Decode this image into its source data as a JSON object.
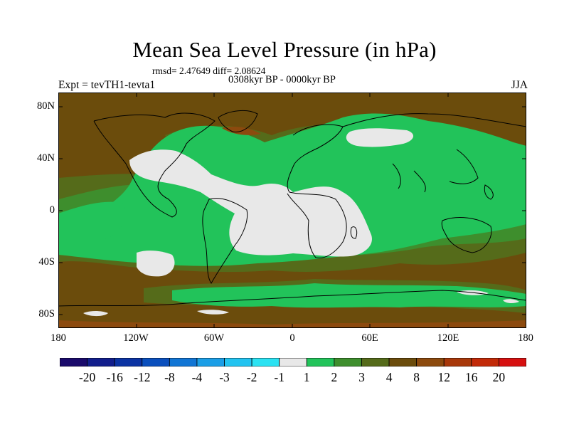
{
  "title": "Mean Sea Level Pressure (in hPa)",
  "stats_line": "rmsd= 2.47649  diff= 2.08624",
  "period_line": "0308kyr BP - 0000kyr BP",
  "experiment": "Expt = tevTH1-tevta1",
  "season": "JJA",
  "lat_labels": [
    "80N",
    "40N",
    "0",
    "40S",
    "80S"
  ],
  "lon_labels": [
    "180",
    "120W",
    "60W",
    "0",
    "60E",
    "120E",
    "180"
  ],
  "colorbar": {
    "labels": [
      "-20",
      "-16",
      "-12",
      "-8",
      "-4",
      "-3",
      "-2",
      "-1",
      "1",
      "2",
      "3",
      "4",
      "8",
      "12",
      "16",
      "20"
    ],
    "colors": [
      "#1a0a6b",
      "#121e8c",
      "#0b33a3",
      "#0a4fbd",
      "#1175d4",
      "#1b9ee6",
      "#22c3f0",
      "#2be2f2",
      "#e8e8e8",
      "#22c35a",
      "#3e8e2d",
      "#556b1a",
      "#6b4c0c",
      "#8c4a0e",
      "#a8380a",
      "#c22a08",
      "#d61010"
    ]
  },
  "map_colors": {
    "ocean_low": "#e8e8e8",
    "band_1_2": "#22c35a",
    "band_2_3": "#3e8e2d",
    "band_3_4": "#556b1a",
    "band_4_8": "#6b4c0c",
    "band_8_12": "#8c4a0e",
    "coast": "#000000"
  }
}
